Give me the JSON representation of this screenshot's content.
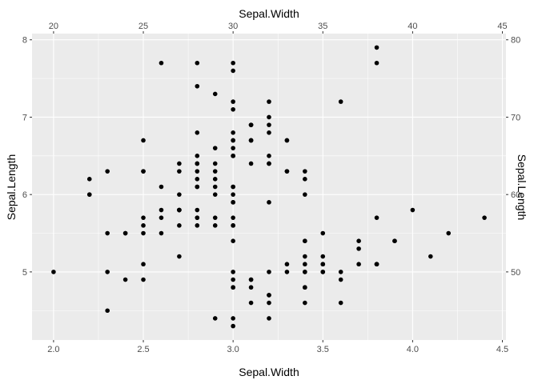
{
  "chart_data": {
    "type": "scatter",
    "xlabel": "Sepal.Width",
    "ylabel": "Sepal.Length",
    "secondary_xlabel": "Sepal.Width",
    "secondary_ylabel": "Sepal.Length",
    "xlim": [
      1.88,
      4.52
    ],
    "ylim": [
      4.12,
      8.08
    ],
    "x_ticks": [
      2.0,
      2.5,
      3.0,
      3.5,
      4.0,
      4.5
    ],
    "x_tick_labels": [
      "2.0",
      "2.5",
      "3.0",
      "3.5",
      "4.0",
      "4.5"
    ],
    "y_ticks": [
      5,
      6,
      7,
      8
    ],
    "y_tick_labels": [
      "5",
      "6",
      "7",
      "8"
    ],
    "secondary_x_ticks": [
      20,
      25,
      30,
      35,
      40,
      45
    ],
    "secondary_x_tick_labels": [
      "20",
      "25",
      "30",
      "35",
      "40",
      "45"
    ],
    "secondary_y_ticks": [
      50,
      60,
      70,
      80
    ],
    "secondary_y_tick_labels": [
      "50",
      "60",
      "70",
      "80"
    ],
    "secondary_scale_factor": 10,
    "grid": true,
    "background_color": "#ebebeb",
    "grid_color": "#ffffff",
    "point_color": "#000000",
    "points": [
      [
        3.5,
        5.1
      ],
      [
        3.0,
        4.9
      ],
      [
        3.2,
        4.7
      ],
      [
        3.1,
        4.6
      ],
      [
        3.6,
        5.0
      ],
      [
        3.9,
        5.4
      ],
      [
        3.4,
        4.6
      ],
      [
        3.4,
        5.0
      ],
      [
        2.9,
        4.4
      ],
      [
        3.1,
        4.9
      ],
      [
        3.7,
        5.4
      ],
      [
        3.4,
        4.8
      ],
      [
        3.0,
        4.8
      ],
      [
        3.0,
        4.3
      ],
      [
        4.0,
        5.8
      ],
      [
        4.4,
        5.7
      ],
      [
        3.9,
        5.4
      ],
      [
        3.5,
        5.1
      ],
      [
        3.8,
        5.7
      ],
      [
        3.8,
        5.1
      ],
      [
        3.4,
        5.4
      ],
      [
        3.7,
        5.1
      ],
      [
        3.6,
        4.6
      ],
      [
        3.3,
        5.1
      ],
      [
        3.4,
        4.8
      ],
      [
        3.0,
        5.0
      ],
      [
        3.4,
        5.0
      ],
      [
        3.5,
        5.2
      ],
      [
        3.4,
        5.2
      ],
      [
        3.2,
        4.7
      ],
      [
        3.1,
        4.8
      ],
      [
        3.4,
        5.4
      ],
      [
        4.1,
        5.2
      ],
      [
        4.2,
        5.5
      ],
      [
        3.1,
        4.9
      ],
      [
        3.2,
        5.0
      ],
      [
        3.5,
        5.5
      ],
      [
        3.6,
        4.9
      ],
      [
        3.0,
        4.4
      ],
      [
        3.4,
        5.1
      ],
      [
        3.5,
        5.0
      ],
      [
        2.3,
        4.5
      ],
      [
        3.2,
        4.4
      ],
      [
        3.5,
        5.0
      ],
      [
        3.8,
        5.1
      ],
      [
        3.0,
        4.8
      ],
      [
        3.8,
        5.1
      ],
      [
        3.2,
        4.6
      ],
      [
        3.7,
        5.3
      ],
      [
        3.3,
        5.0
      ],
      [
        3.2,
        7.0
      ],
      [
        3.2,
        6.4
      ],
      [
        3.1,
        6.9
      ],
      [
        2.3,
        5.5
      ],
      [
        2.8,
        6.5
      ],
      [
        2.8,
        5.7
      ],
      [
        3.3,
        6.3
      ],
      [
        2.4,
        4.9
      ],
      [
        2.9,
        6.6
      ],
      [
        2.7,
        5.2
      ],
      [
        2.0,
        5.0
      ],
      [
        3.0,
        5.9
      ],
      [
        2.2,
        6.0
      ],
      [
        2.9,
        6.1
      ],
      [
        2.9,
        5.6
      ],
      [
        3.1,
        6.7
      ],
      [
        3.0,
        5.6
      ],
      [
        2.7,
        5.8
      ],
      [
        2.2,
        6.2
      ],
      [
        2.5,
        5.6
      ],
      [
        3.2,
        5.9
      ],
      [
        2.8,
        6.1
      ],
      [
        2.5,
        6.3
      ],
      [
        2.8,
        6.1
      ],
      [
        2.9,
        6.4
      ],
      [
        3.0,
        6.6
      ],
      [
        2.8,
        6.8
      ],
      [
        3.0,
        6.7
      ],
      [
        2.9,
        6.0
      ],
      [
        2.6,
        5.7
      ],
      [
        2.4,
        5.5
      ],
      [
        2.4,
        5.5
      ],
      [
        2.7,
        5.8
      ],
      [
        2.7,
        6.0
      ],
      [
        3.0,
        5.4
      ],
      [
        3.4,
        6.0
      ],
      [
        3.1,
        6.7
      ],
      [
        2.3,
        6.3
      ],
      [
        3.0,
        5.6
      ],
      [
        2.5,
        5.5
      ],
      [
        2.6,
        5.5
      ],
      [
        3.0,
        6.1
      ],
      [
        2.6,
        5.8
      ],
      [
        2.3,
        5.0
      ],
      [
        2.7,
        5.6
      ],
      [
        3.0,
        5.7
      ],
      [
        2.9,
        5.7
      ],
      [
        2.9,
        6.2
      ],
      [
        2.5,
        5.1
      ],
      [
        2.8,
        5.7
      ],
      [
        3.3,
        6.3
      ],
      [
        2.7,
        5.8
      ],
      [
        3.0,
        7.1
      ],
      [
        2.9,
        6.3
      ],
      [
        3.0,
        6.5
      ],
      [
        3.0,
        7.6
      ],
      [
        2.5,
        4.9
      ],
      [
        2.9,
        7.3
      ],
      [
        2.5,
        6.7
      ],
      [
        3.6,
        7.2
      ],
      [
        3.2,
        6.5
      ],
      [
        2.7,
        6.4
      ],
      [
        3.0,
        6.8
      ],
      [
        2.5,
        5.7
      ],
      [
        2.8,
        5.8
      ],
      [
        3.2,
        6.4
      ],
      [
        3.0,
        6.5
      ],
      [
        3.8,
        7.7
      ],
      [
        2.6,
        7.7
      ],
      [
        2.2,
        6.0
      ],
      [
        3.2,
        6.9
      ],
      [
        2.8,
        5.6
      ],
      [
        2.8,
        7.7
      ],
      [
        2.7,
        6.3
      ],
      [
        3.3,
        6.7
      ],
      [
        3.2,
        7.2
      ],
      [
        2.8,
        6.2
      ],
      [
        3.0,
        6.1
      ],
      [
        2.8,
        6.4
      ],
      [
        3.0,
        7.2
      ],
      [
        2.8,
        7.4
      ],
      [
        3.8,
        7.9
      ],
      [
        2.8,
        6.4
      ],
      [
        2.8,
        6.3
      ],
      [
        2.6,
        6.1
      ],
      [
        3.0,
        7.7
      ],
      [
        3.4,
        6.3
      ],
      [
        3.1,
        6.4
      ],
      [
        3.0,
        6.0
      ],
      [
        3.1,
        6.9
      ],
      [
        3.1,
        6.7
      ],
      [
        3.1,
        6.9
      ],
      [
        2.7,
        5.8
      ],
      [
        3.2,
        6.8
      ],
      [
        3.3,
        6.7
      ],
      [
        3.0,
        6.7
      ],
      [
        2.5,
        6.3
      ],
      [
        3.0,
        6.5
      ],
      [
        3.4,
        6.2
      ],
      [
        3.0,
        5.9
      ]
    ]
  }
}
